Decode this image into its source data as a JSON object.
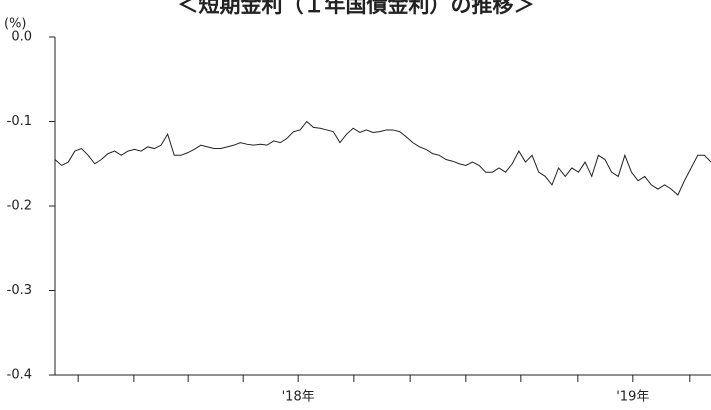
{
  "chart_data": {
    "type": "line",
    "title": "＜短期金利（１年国債金利）の推移＞",
    "y_unit": "(%)",
    "color": "#222222",
    "xlim": [
      0,
      99
    ],
    "xticks": [
      {
        "value": 36.7,
        "label": "'18年"
      },
      {
        "value": 87.2,
        "label": "'19年"
      }
    ],
    "x_minor_ticks": [
      3.5,
      11.9,
      20.1,
      28.4,
      45.1,
      53.6,
      62.0,
      70.3,
      78.9,
      95.8
    ],
    "ylim": [
      -0.4,
      0
    ],
    "yticks": [
      {
        "value": 0,
        "label": "0.0"
      },
      -0.1,
      -0.2,
      -0.3,
      -0.4
    ],
    "values": [
      -0.145,
      -0.152,
      -0.148,
      -0.135,
      -0.132,
      -0.14,
      -0.15,
      -0.145,
      -0.138,
      -0.135,
      -0.14,
      -0.135,
      -0.133,
      -0.135,
      -0.13,
      -0.132,
      -0.128,
      -0.115,
      -0.14,
      -0.14,
      -0.137,
      -0.133,
      -0.128,
      -0.13,
      -0.132,
      -0.132,
      -0.13,
      -0.128,
      -0.125,
      -0.127,
      -0.128,
      -0.127,
      -0.128,
      -0.123,
      -0.125,
      -0.12,
      -0.112,
      -0.11,
      -0.1,
      -0.107,
      -0.108,
      -0.11,
      -0.112,
      -0.125,
      -0.115,
      -0.108,
      -0.113,
      -0.11,
      -0.113,
      -0.112,
      -0.11,
      -0.11,
      -0.112,
      -0.118,
      -0.125,
      -0.13,
      -0.133,
      -0.138,
      -0.14,
      -0.145,
      -0.147,
      -0.15,
      -0.152,
      -0.148,
      -0.152,
      -0.16,
      -0.16,
      -0.155,
      -0.16,
      -0.15,
      -0.135,
      -0.148,
      -0.14,
      -0.16,
      -0.165,
      -0.175,
      -0.155,
      -0.165,
      -0.155,
      -0.16,
      -0.148,
      -0.165,
      -0.14,
      -0.145,
      -0.16,
      -0.165,
      -0.14,
      -0.16,
      -0.17,
      -0.165,
      -0.175,
      -0.18,
      -0.175,
      -0.18,
      -0.187,
      -0.17,
      -0.155,
      -0.14,
      -0.14,
      -0.148
    ]
  }
}
